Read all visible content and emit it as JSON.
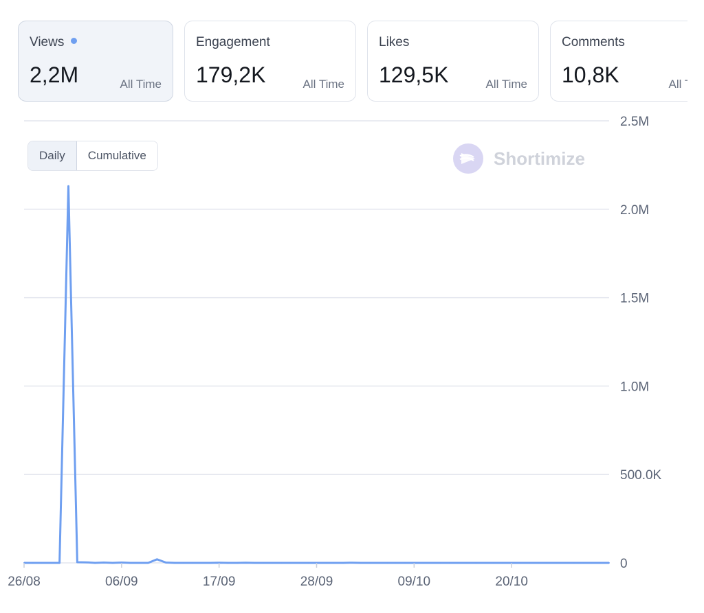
{
  "cards": [
    {
      "title": "Views",
      "value": "2,2M",
      "period": "All Time",
      "active": true
    },
    {
      "title": "Engagement",
      "value": "179,2K",
      "period": "All Time",
      "active": false
    },
    {
      "title": "Likes",
      "value": "129,5K",
      "period": "All Time",
      "active": false
    },
    {
      "title": "Comments",
      "value": "10,8K",
      "period": "All Time",
      "active": false
    }
  ],
  "toggle": {
    "daily": "Daily",
    "cumulative": "Cumulative",
    "selected": "Daily"
  },
  "brand": {
    "name": "Shortimize",
    "icon": "shortimize-logo-icon",
    "color": "#cfd2da"
  },
  "colors": {
    "series": "#6f9ff0",
    "grid": "#e3e6ee",
    "active_card_bg": "#f1f4f9"
  },
  "chart_data": {
    "type": "line",
    "series": [
      {
        "values": [
          {
            "x": "2023-08-26",
            "y": 0
          },
          {
            "x": "2023-08-27",
            "y": 0
          },
          {
            "x": "2023-08-28",
            "y": 0
          },
          {
            "x": "2023-08-29",
            "y": 0
          },
          {
            "x": "2023-08-30",
            "y": 0
          },
          {
            "x": "2023-08-31",
            "y": 2130000
          },
          {
            "x": "2023-09-01",
            "y": 4000
          },
          {
            "x": "2023-09-02",
            "y": 3000
          },
          {
            "x": "2023-09-03",
            "y": 0
          },
          {
            "x": "2023-09-04",
            "y": 2000
          },
          {
            "x": "2023-09-05",
            "y": 0
          },
          {
            "x": "2023-09-06",
            "y": 2000
          },
          {
            "x": "2023-09-07",
            "y": 0
          },
          {
            "x": "2023-09-08",
            "y": 0
          },
          {
            "x": "2023-09-09",
            "y": 0
          },
          {
            "x": "2023-09-10",
            "y": 20000
          },
          {
            "x": "2023-09-11",
            "y": 2000
          },
          {
            "x": "2023-09-12",
            "y": 0
          },
          {
            "x": "2023-09-13",
            "y": 0
          },
          {
            "x": "2023-09-14",
            "y": 0
          },
          {
            "x": "2023-09-15",
            "y": 0
          },
          {
            "x": "2023-09-16",
            "y": 0
          },
          {
            "x": "2023-09-17",
            "y": 1000
          },
          {
            "x": "2023-09-18",
            "y": 0
          },
          {
            "x": "2023-09-19",
            "y": 0
          },
          {
            "x": "2023-09-20",
            "y": 1000
          },
          {
            "x": "2023-09-21",
            "y": 0
          },
          {
            "x": "2023-09-22",
            "y": 0
          },
          {
            "x": "2023-09-23",
            "y": 0
          },
          {
            "x": "2023-09-24",
            "y": 0
          },
          {
            "x": "2023-09-25",
            "y": 0
          },
          {
            "x": "2023-09-26",
            "y": 0
          },
          {
            "x": "2023-09-27",
            "y": 0
          },
          {
            "x": "2023-09-28",
            "y": 0
          },
          {
            "x": "2023-09-29",
            "y": 0
          },
          {
            "x": "2023-09-30",
            "y": 0
          },
          {
            "x": "2023-10-01",
            "y": 0
          },
          {
            "x": "2023-10-02",
            "y": 1000
          },
          {
            "x": "2023-10-03",
            "y": 0
          },
          {
            "x": "2023-10-04",
            "y": 0
          },
          {
            "x": "2023-10-05",
            "y": 0
          },
          {
            "x": "2023-10-06",
            "y": 0
          },
          {
            "x": "2023-10-07",
            "y": 0
          },
          {
            "x": "2023-10-08",
            "y": 0
          },
          {
            "x": "2023-10-09",
            "y": 0
          },
          {
            "x": "2023-10-10",
            "y": 0
          },
          {
            "x": "2023-10-11",
            "y": 0
          },
          {
            "x": "2023-10-12",
            "y": 0
          },
          {
            "x": "2023-10-13",
            "y": 0
          },
          {
            "x": "2023-10-14",
            "y": 0
          },
          {
            "x": "2023-10-15",
            "y": 0
          },
          {
            "x": "2023-10-16",
            "y": 0
          },
          {
            "x": "2023-10-17",
            "y": 0
          },
          {
            "x": "2023-10-18",
            "y": 0
          },
          {
            "x": "2023-10-19",
            "y": 0
          },
          {
            "x": "2023-10-20",
            "y": 0
          },
          {
            "x": "2023-10-21",
            "y": 0
          },
          {
            "x": "2023-10-22",
            "y": 0
          },
          {
            "x": "2023-10-23",
            "y": 0
          },
          {
            "x": "2023-10-24",
            "y": 0
          },
          {
            "x": "2023-10-25",
            "y": 0
          },
          {
            "x": "2023-10-26",
            "y": 0
          },
          {
            "x": "2023-10-27",
            "y": 0
          },
          {
            "x": "2023-10-28",
            "y": 0
          },
          {
            "x": "2023-10-29",
            "y": 0
          },
          {
            "x": "2023-10-30",
            "y": 0
          },
          {
            "x": "2023-10-31",
            "y": 0
          }
        ]
      }
    ],
    "x_ticks": [
      {
        "x": "2023-08-26",
        "label": "26/08"
      },
      {
        "x": "2023-09-06",
        "label": "06/09"
      },
      {
        "x": "2023-09-17",
        "label": "17/09"
      },
      {
        "x": "2023-09-28",
        "label": "28/09"
      },
      {
        "x": "2023-10-09",
        "label": "09/10"
      },
      {
        "x": "2023-10-20",
        "label": "20/10"
      }
    ],
    "y_ticks": [
      {
        "value": 0,
        "label": "0"
      },
      {
        "value": 500000,
        "label": "500.0K"
      },
      {
        "value": 1000000,
        "label": "1.0M"
      },
      {
        "value": 1500000,
        "label": "1.5M"
      },
      {
        "value": 2000000,
        "label": "2.0M"
      },
      {
        "value": 2500000,
        "label": "2.5M"
      }
    ],
    "xlim": [
      "2023-08-26",
      "2023-10-31"
    ],
    "ylim": [
      0,
      2500000
    ],
    "y_axis_side": "right",
    "grid": true
  }
}
